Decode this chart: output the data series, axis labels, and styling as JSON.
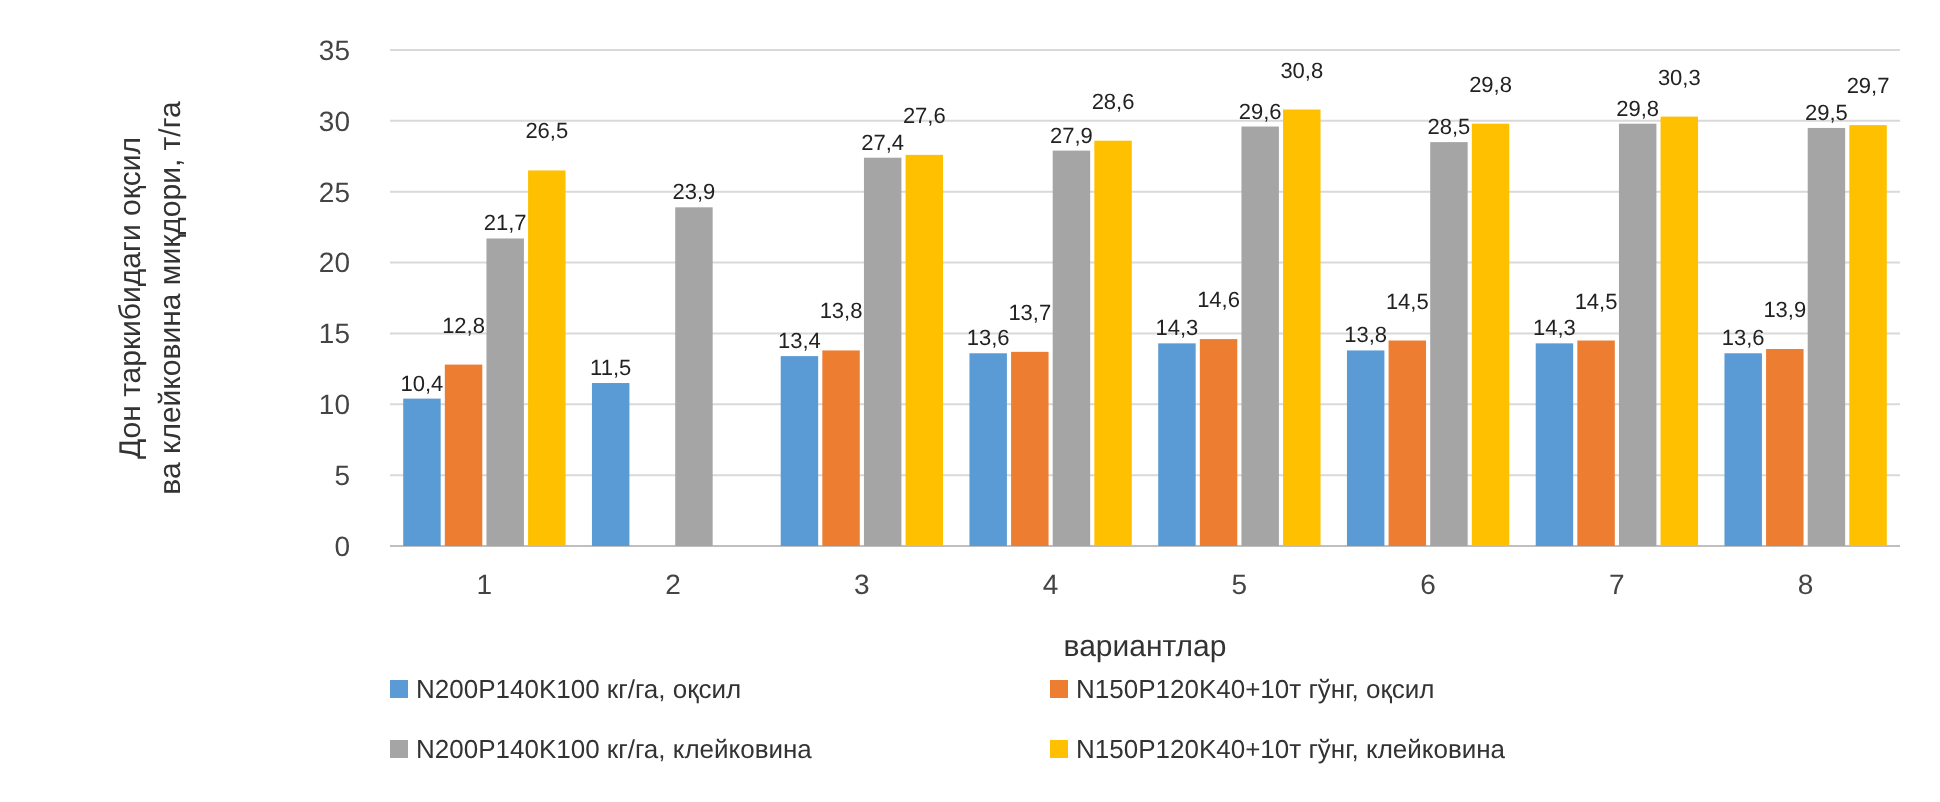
{
  "chart_data": {
    "type": "bar",
    "xlabel": "вариантлар",
    "ylabel": "Дон таркибидаги оқсил ва клейковина миқдори, т/га",
    "categories": [
      "1",
      "2",
      "3",
      "4",
      "5",
      "6",
      "7",
      "8"
    ],
    "ylim": [
      0,
      35
    ],
    "yticks": [
      0,
      5,
      10,
      15,
      20,
      25,
      30,
      35
    ],
    "grid": "y",
    "legend": "bottom",
    "series": [
      {
        "name": "N200P140K100 кг/га, оқсил",
        "color": "#5b9bd5",
        "values": [
          10.4,
          11.5,
          13.4,
          13.6,
          14.3,
          13.8,
          14.3,
          13.6
        ],
        "value_labels": [
          "10,4",
          "11,5",
          "13,4",
          "13,6",
          "14,3",
          "13,8",
          "14,3",
          "13,6"
        ]
      },
      {
        "name": "N150P120K40+10т гўнг, оқсил",
        "color": "#ed7d31",
        "values": [
          12.8,
          null,
          13.8,
          13.7,
          14.6,
          14.5,
          14.5,
          13.9
        ],
        "value_labels": [
          "12,8",
          null,
          "13,8",
          "13,7",
          "14,6",
          "14,5",
          "14,5",
          "13,9"
        ]
      },
      {
        "name": "N200P140K100 кг/га, клейковина",
        "color": "#a5a5a5",
        "values": [
          21.7,
          23.9,
          27.4,
          27.9,
          29.6,
          28.5,
          29.8,
          29.5
        ],
        "value_labels": [
          "21,7",
          "23,9",
          "27,4",
          "27,9",
          "29,6",
          "28,5",
          "29,8",
          "29,5"
        ]
      },
      {
        "name": "N150P120K40+10т гўнг, клейковина",
        "color": "#ffc000",
        "values": [
          26.5,
          null,
          27.6,
          28.6,
          30.8,
          29.8,
          30.3,
          29.7
        ],
        "value_labels": [
          "26,5",
          null,
          "27,6",
          "28,6",
          "30,8",
          "29,8",
          "30,3",
          "29,7"
        ]
      }
    ]
  }
}
